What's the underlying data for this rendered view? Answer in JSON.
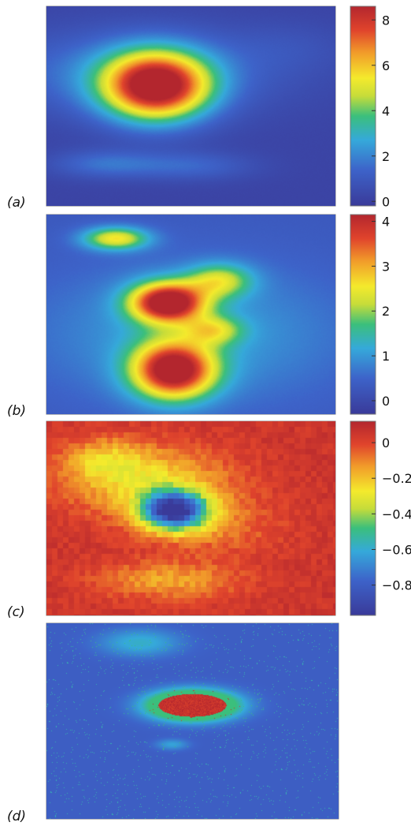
{
  "chart_data": [
    {
      "type": "heatmap",
      "panel_label": "(a)",
      "colorbar": {
        "range": [
          -0.2,
          8.6
        ],
        "ticks": [
          {
            "value": 8,
            "label": "8"
          },
          {
            "value": 6,
            "label": "6"
          },
          {
            "value": 4,
            "label": "4"
          },
          {
            "value": 2,
            "label": "2"
          },
          {
            "value": 0,
            "label": "0"
          }
        ]
      },
      "background_level": 0.2,
      "features": [
        {
          "cx": 0.38,
          "cy": 0.4,
          "sx": 0.13,
          "sy": 0.12,
          "amplitude": 8.6
        },
        {
          "cx": 0.3,
          "cy": 0.33,
          "sx": 0.35,
          "sy": 0.15,
          "amplitude": 1.7
        },
        {
          "cx": 0.2,
          "cy": 0.79,
          "sx": 0.13,
          "sy": 0.05,
          "amplitude": 1.4
        },
        {
          "cx": 0.5,
          "cy": 0.8,
          "sx": 0.15,
          "sy": 0.05,
          "amplitude": 1.2
        },
        {
          "cx": 0.85,
          "cy": 0.2,
          "sx": 0.15,
          "sy": 0.09,
          "amplitude": 0.4
        }
      ]
    },
    {
      "type": "heatmap",
      "panel_label": "(b)",
      "colorbar": {
        "range": [
          -0.3,
          4.15
        ],
        "ticks": [
          {
            "value": 4,
            "label": "4"
          },
          {
            "value": 3,
            "label": "3"
          },
          {
            "value": 2,
            "label": "2"
          },
          {
            "value": 1,
            "label": "1"
          },
          {
            "value": 0,
            "label": "0"
          }
        ]
      },
      "background_level": 0.3,
      "features": [
        {
          "cx": 0.42,
          "cy": 0.44,
          "sx": 0.09,
          "sy": 0.07,
          "amplitude": 4.1
        },
        {
          "cx": 0.44,
          "cy": 0.78,
          "sx": 0.1,
          "sy": 0.1,
          "amplitude": 4.0
        },
        {
          "cx": 0.24,
          "cy": 0.12,
          "sx": 0.08,
          "sy": 0.04,
          "amplitude": 2.2
        },
        {
          "cx": 0.6,
          "cy": 0.33,
          "sx": 0.08,
          "sy": 0.06,
          "amplitude": 1.7
        },
        {
          "cx": 0.58,
          "cy": 0.58,
          "sx": 0.07,
          "sy": 0.05,
          "amplitude": 1.4
        },
        {
          "cx": 0.5,
          "cy": 0.6,
          "sx": 0.38,
          "sy": 0.25,
          "amplitude": 0.8
        }
      ]
    },
    {
      "type": "heatmap",
      "panel_label": "(c)",
      "colorbar": {
        "range": [
          -0.97,
          0.12
        ],
        "ticks": [
          {
            "value": 0,
            "label": "0"
          },
          {
            "value": -0.2,
            "label": "−0.2"
          },
          {
            "value": -0.4,
            "label": "−0.4"
          },
          {
            "value": -0.6,
            "label": "−0.6"
          },
          {
            "value": -0.8,
            "label": "−0.8"
          }
        ]
      },
      "background_level": 0.05,
      "features": [
        {
          "cx": 0.44,
          "cy": 0.46,
          "sx": 0.08,
          "sy": 0.07,
          "amplitude": -0.95
        },
        {
          "cx": 0.36,
          "cy": 0.32,
          "sx": 0.2,
          "sy": 0.13,
          "amplitude": -0.28
        },
        {
          "cx": 0.2,
          "cy": 0.2,
          "sx": 0.1,
          "sy": 0.08,
          "amplitude": -0.2
        },
        {
          "cx": 0.42,
          "cy": 0.82,
          "sx": 0.18,
          "sy": 0.07,
          "amplitude": -0.2
        },
        {
          "cx": 0.6,
          "cy": 0.55,
          "sx": 0.15,
          "sy": 0.1,
          "amplitude": -0.12
        }
      ]
    },
    {
      "type": "heatmap",
      "panel_label": "(d)",
      "colorbar": null,
      "background_level": 0.04,
      "features": [
        {
          "cx": 0.5,
          "cy": 0.42,
          "sx": 0.1,
          "sy": 0.05,
          "amplitude": 1.0
        },
        {
          "cx": 0.32,
          "cy": 0.1,
          "sx": 0.1,
          "sy": 0.05,
          "amplitude": 0.22
        },
        {
          "cx": 0.43,
          "cy": 0.62,
          "sx": 0.04,
          "sy": 0.02,
          "amplitude": 0.18
        }
      ]
    }
  ]
}
